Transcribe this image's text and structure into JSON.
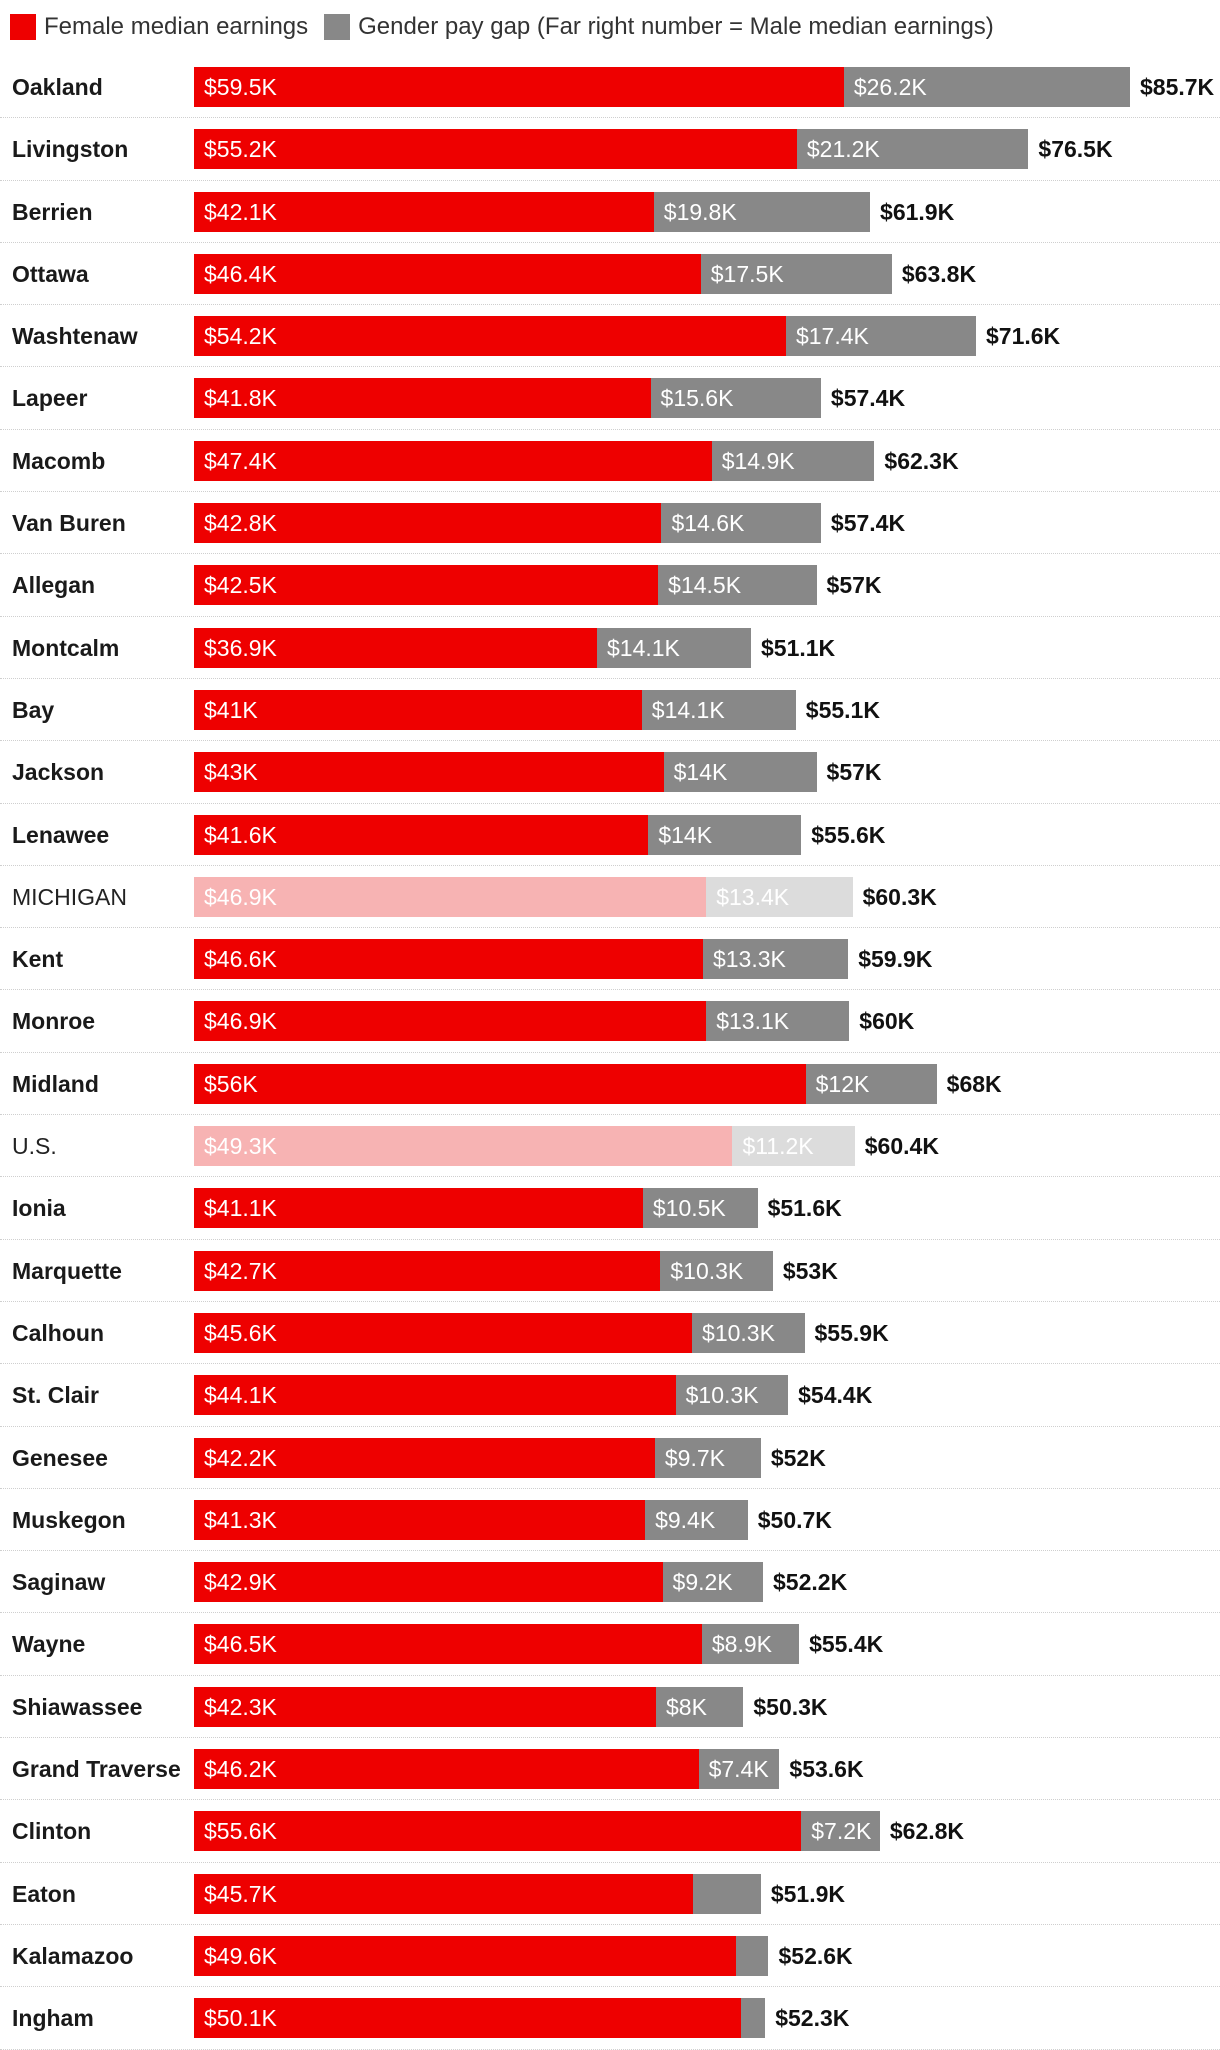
{
  "legend": {
    "female": {
      "label": "Female median earnings",
      "color": "#ee0000"
    },
    "gap": {
      "label": "Gender pay gap (Far right number = Male median earnings)",
      "color": "#888888"
    }
  },
  "chart_data": {
    "type": "bar",
    "orientation": "horizontal",
    "stacked": true,
    "units": "thousands of dollars",
    "xlim": [
      0,
      85.7
    ],
    "series": [
      {
        "name": "Female median earnings",
        "color": "#ee0000"
      },
      {
        "name": "Gender pay gap (Far right number = Male median earnings)",
        "color": "#888888"
      }
    ],
    "rows": [
      {
        "name": "Oakland",
        "female": 59.5,
        "gap": 26.2,
        "male": 85.7,
        "female_label": "$59.5K",
        "gap_label": "$26.2K",
        "male_label": "$85.7K",
        "reference": false
      },
      {
        "name": "Livingston",
        "female": 55.2,
        "gap": 21.2,
        "male": 76.5,
        "female_label": "$55.2K",
        "gap_label": "$21.2K",
        "male_label": "$76.5K",
        "reference": false
      },
      {
        "name": "Berrien",
        "female": 42.1,
        "gap": 19.8,
        "male": 61.9,
        "female_label": "$42.1K",
        "gap_label": "$19.8K",
        "male_label": "$61.9K",
        "reference": false
      },
      {
        "name": "Ottawa",
        "female": 46.4,
        "gap": 17.5,
        "male": 63.8,
        "female_label": "$46.4K",
        "gap_label": "$17.5K",
        "male_label": "$63.8K",
        "reference": false
      },
      {
        "name": "Washtenaw",
        "female": 54.2,
        "gap": 17.4,
        "male": 71.6,
        "female_label": "$54.2K",
        "gap_label": "$17.4K",
        "male_label": "$71.6K",
        "reference": false
      },
      {
        "name": "Lapeer",
        "female": 41.8,
        "gap": 15.6,
        "male": 57.4,
        "female_label": "$41.8K",
        "gap_label": "$15.6K",
        "male_label": "$57.4K",
        "reference": false
      },
      {
        "name": "Macomb",
        "female": 47.4,
        "gap": 14.9,
        "male": 62.3,
        "female_label": "$47.4K",
        "gap_label": "$14.9K",
        "male_label": "$62.3K",
        "reference": false
      },
      {
        "name": "Van Buren",
        "female": 42.8,
        "gap": 14.6,
        "male": 57.4,
        "female_label": "$42.8K",
        "gap_label": "$14.6K",
        "male_label": "$57.4K",
        "reference": false
      },
      {
        "name": "Allegan",
        "female": 42.5,
        "gap": 14.5,
        "male": 57.0,
        "female_label": "$42.5K",
        "gap_label": "$14.5K",
        "male_label": "$57K",
        "reference": false
      },
      {
        "name": "Montcalm",
        "female": 36.9,
        "gap": 14.1,
        "male": 51.1,
        "female_label": "$36.9K",
        "gap_label": "$14.1K",
        "male_label": "$51.1K",
        "reference": false
      },
      {
        "name": "Bay",
        "female": 41.0,
        "gap": 14.1,
        "male": 55.1,
        "female_label": "$41K",
        "gap_label": "$14.1K",
        "male_label": "$55.1K",
        "reference": false
      },
      {
        "name": "Jackson",
        "female": 43.0,
        "gap": 14.0,
        "male": 57.0,
        "female_label": "$43K",
        "gap_label": "$14K",
        "male_label": "$57K",
        "reference": false
      },
      {
        "name": "Lenawee",
        "female": 41.6,
        "gap": 14.0,
        "male": 55.6,
        "female_label": "$41.6K",
        "gap_label": "$14K",
        "male_label": "$55.6K",
        "reference": false
      },
      {
        "name": "MICHIGAN",
        "female": 46.9,
        "gap": 13.4,
        "male": 60.3,
        "female_label": "$46.9K",
        "gap_label": "$13.4K",
        "male_label": "$60.3K",
        "reference": true
      },
      {
        "name": "Kent",
        "female": 46.6,
        "gap": 13.3,
        "male": 59.9,
        "female_label": "$46.6K",
        "gap_label": "$13.3K",
        "male_label": "$59.9K",
        "reference": false
      },
      {
        "name": "Monroe",
        "female": 46.9,
        "gap": 13.1,
        "male": 60.0,
        "female_label": "$46.9K",
        "gap_label": "$13.1K",
        "male_label": "$60K",
        "reference": false
      },
      {
        "name": "Midland",
        "female": 56.0,
        "gap": 12.0,
        "male": 68.0,
        "female_label": "$56K",
        "gap_label": "$12K",
        "male_label": "$68K",
        "reference": false
      },
      {
        "name": "U.S.",
        "female": 49.3,
        "gap": 11.2,
        "male": 60.4,
        "female_label": "$49.3K",
        "gap_label": "$11.2K",
        "male_label": "$60.4K",
        "reference": true
      },
      {
        "name": "Ionia",
        "female": 41.1,
        "gap": 10.5,
        "male": 51.6,
        "female_label": "$41.1K",
        "gap_label": "$10.5K",
        "male_label": "$51.6K",
        "reference": false
      },
      {
        "name": "Marquette",
        "female": 42.7,
        "gap": 10.3,
        "male": 53.0,
        "female_label": "$42.7K",
        "gap_label": "$10.3K",
        "male_label": "$53K",
        "reference": false
      },
      {
        "name": "Calhoun",
        "female": 45.6,
        "gap": 10.3,
        "male": 55.9,
        "female_label": "$45.6K",
        "gap_label": "$10.3K",
        "male_label": "$55.9K",
        "reference": false
      },
      {
        "name": "St. Clair",
        "female": 44.1,
        "gap": 10.3,
        "male": 54.4,
        "female_label": "$44.1K",
        "gap_label": "$10.3K",
        "male_label": "$54.4K",
        "reference": false
      },
      {
        "name": "Genesee",
        "female": 42.2,
        "gap": 9.7,
        "male": 52.0,
        "female_label": "$42.2K",
        "gap_label": "$9.7K",
        "male_label": "$52K",
        "reference": false
      },
      {
        "name": "Muskegon",
        "female": 41.3,
        "gap": 9.4,
        "male": 50.7,
        "female_label": "$41.3K",
        "gap_label": "$9.4K",
        "male_label": "$50.7K",
        "reference": false
      },
      {
        "name": "Saginaw",
        "female": 42.9,
        "gap": 9.2,
        "male": 52.2,
        "female_label": "$42.9K",
        "gap_label": "$9.2K",
        "male_label": "$52.2K",
        "reference": false
      },
      {
        "name": "Wayne",
        "female": 46.5,
        "gap": 8.9,
        "male": 55.4,
        "female_label": "$46.5K",
        "gap_label": "$8.9K",
        "male_label": "$55.4K",
        "reference": false
      },
      {
        "name": "Shiawassee",
        "female": 42.3,
        "gap": 8.0,
        "male": 50.3,
        "female_label": "$42.3K",
        "gap_label": "$8K",
        "male_label": "$50.3K",
        "reference": false
      },
      {
        "name": "Grand Traverse",
        "female": 46.2,
        "gap": 7.4,
        "male": 53.6,
        "female_label": "$46.2K",
        "gap_label": "$7.4K",
        "male_label": "$53.6K",
        "reference": false
      },
      {
        "name": "Clinton",
        "female": 55.6,
        "gap": 7.2,
        "male": 62.8,
        "female_label": "$55.6K",
        "gap_label": "$7.2K",
        "male_label": "$62.8K",
        "reference": false
      },
      {
        "name": "Eaton",
        "female": 45.7,
        "gap": 6.2,
        "male": 51.9,
        "female_label": "$45.7K",
        "gap_label": "",
        "male_label": "$51.9K",
        "reference": false
      },
      {
        "name": "Kalamazoo",
        "female": 49.6,
        "gap": 3.0,
        "male": 52.6,
        "female_label": "$49.6K",
        "gap_label": "",
        "male_label": "$52.6K",
        "reference": false
      },
      {
        "name": "Ingham",
        "female": 50.1,
        "gap": 2.2,
        "male": 52.3,
        "female_label": "$50.1K",
        "gap_label": "",
        "male_label": "$52.3K",
        "reference": false
      }
    ]
  }
}
